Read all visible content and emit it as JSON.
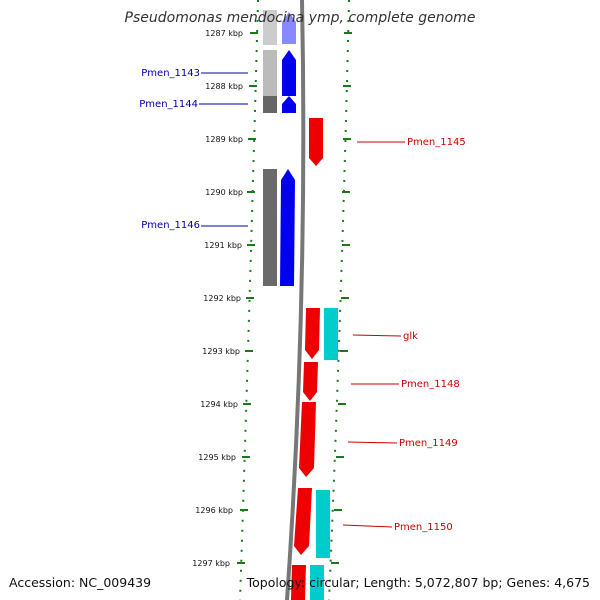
{
  "title": "Pseudomonas mendocina ymp, complete genome",
  "accession": "Accession: NC_009439",
  "topology": "Topology: circular; Length: 5,072,807 bp; Genes: 4,675",
  "kbp_labels": [
    "1287 kbp",
    "1288 kbp",
    "1289 kbp",
    "1290 kbp",
    "1291 kbp",
    "1292 kbp",
    "1293 kbp",
    "1294 kbp",
    "1295 kbp",
    "1296 kbp",
    "1297 kbp"
  ],
  "colors": {
    "forward": "#0000ee",
    "reverse": "#ee0000",
    "cyan": "#00cccc",
    "backbone": "#777777",
    "ticks": "#1a7a1a",
    "left_label": "#0000aa",
    "right_label": "#cc0000"
  },
  "left_genes": [
    {
      "label": "Pmen_1143"
    },
    {
      "label": "Pmen_1144"
    },
    {
      "label": "Pmen_1146"
    }
  ],
  "right_genes": [
    {
      "label": "Pmen_1145"
    },
    {
      "label": "glk"
    },
    {
      "label": "Pmen_1148"
    },
    {
      "label": "Pmen_1149"
    },
    {
      "label": "Pmen_1150"
    }
  ]
}
